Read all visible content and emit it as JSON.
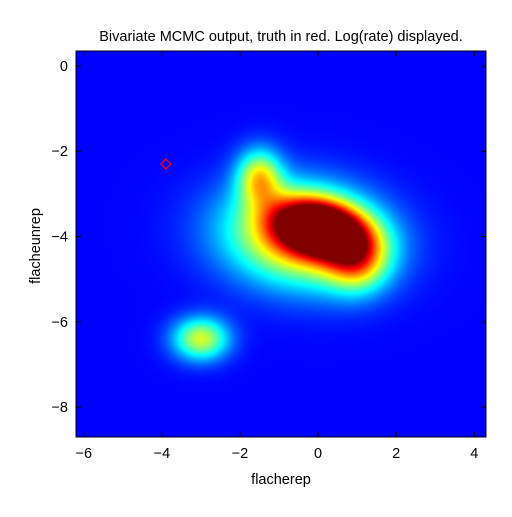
{
  "chart_data": {
    "type": "heatmap",
    "title": "Bivariate MCMC output, truth in red. Log(rate) displayed.",
    "xlabel": "flacherep",
    "ylabel": "flacheunrep",
    "xlim": [
      -6.2,
      4.3
    ],
    "ylim": [
      -8.7,
      0.35
    ],
    "xticks": [
      -6,
      -4,
      -2,
      0,
      2,
      4
    ],
    "yticks": [
      0,
      -2,
      -4,
      -6,
      -8
    ],
    "xtick_labels": [
      "−6",
      "−4",
      "−2",
      "0",
      "2",
      "4"
    ],
    "ytick_labels": [
      "0",
      "−2",
      "−4",
      "−6",
      "−8"
    ],
    "colormap": "jet",
    "grid": false,
    "density_modes": [
      {
        "x": 0.1,
        "y": -3.8,
        "sx": 0.8,
        "sy": 0.45,
        "rho": -0.25,
        "level": 0.95
      },
      {
        "x": -0.4,
        "y": -4.0,
        "sx": 1.35,
        "sy": 0.8,
        "rho": -0.1,
        "level": 0.66
      },
      {
        "x": -1.5,
        "y": -2.6,
        "sx": 0.4,
        "sy": 0.45,
        "rho": 0,
        "level": 0.45
      },
      {
        "x": 1.0,
        "y": -4.6,
        "sx": 0.55,
        "sy": 0.5,
        "rho": 0,
        "level": 0.4
      },
      {
        "x": -3.0,
        "y": -6.4,
        "sx": 0.5,
        "sy": 0.35,
        "rho": 0,
        "level": 0.46
      }
    ],
    "truth": {
      "x": -3.9,
      "y": -2.3,
      "color": "#ff0000",
      "marker": "diamond"
    }
  }
}
